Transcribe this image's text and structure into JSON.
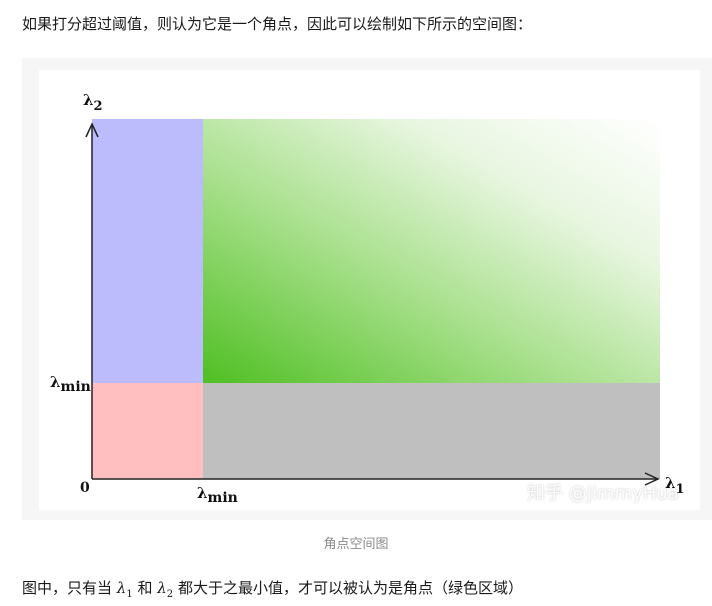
{
  "text": {
    "intro": "如果打分超过阈值，则认为它是一个角点，因此可以绘制如下所示的空间图：",
    "caption": "角点空间图",
    "conclusion_pre": "图中，只有当",
    "conclusion_and": "和",
    "conclusion_post": "都大于之最小值，才可以被认为是角点（绿色区域）"
  },
  "math": {
    "lambda": "λ",
    "sub1": "1",
    "sub2": "2"
  },
  "figure": {
    "y_axis_label": "λ",
    "y_axis_sub": "2",
    "x_axis_label": "λ",
    "x_axis_sub": "1",
    "y_threshold_label": "λ",
    "y_threshold_sub": "min",
    "x_threshold_label": "λ",
    "x_threshold_sub": "min",
    "origin_label": "0",
    "watermark": "知乎 @JimmyHua",
    "colors": {
      "blue_region": "#bcbcfd",
      "green_region_dark": "#4fbf22",
      "green_region_light": "#ffffff",
      "pink_region": "#ffbfc0",
      "gray_region": "#bfbfbf",
      "axis": "#222222"
    }
  }
}
